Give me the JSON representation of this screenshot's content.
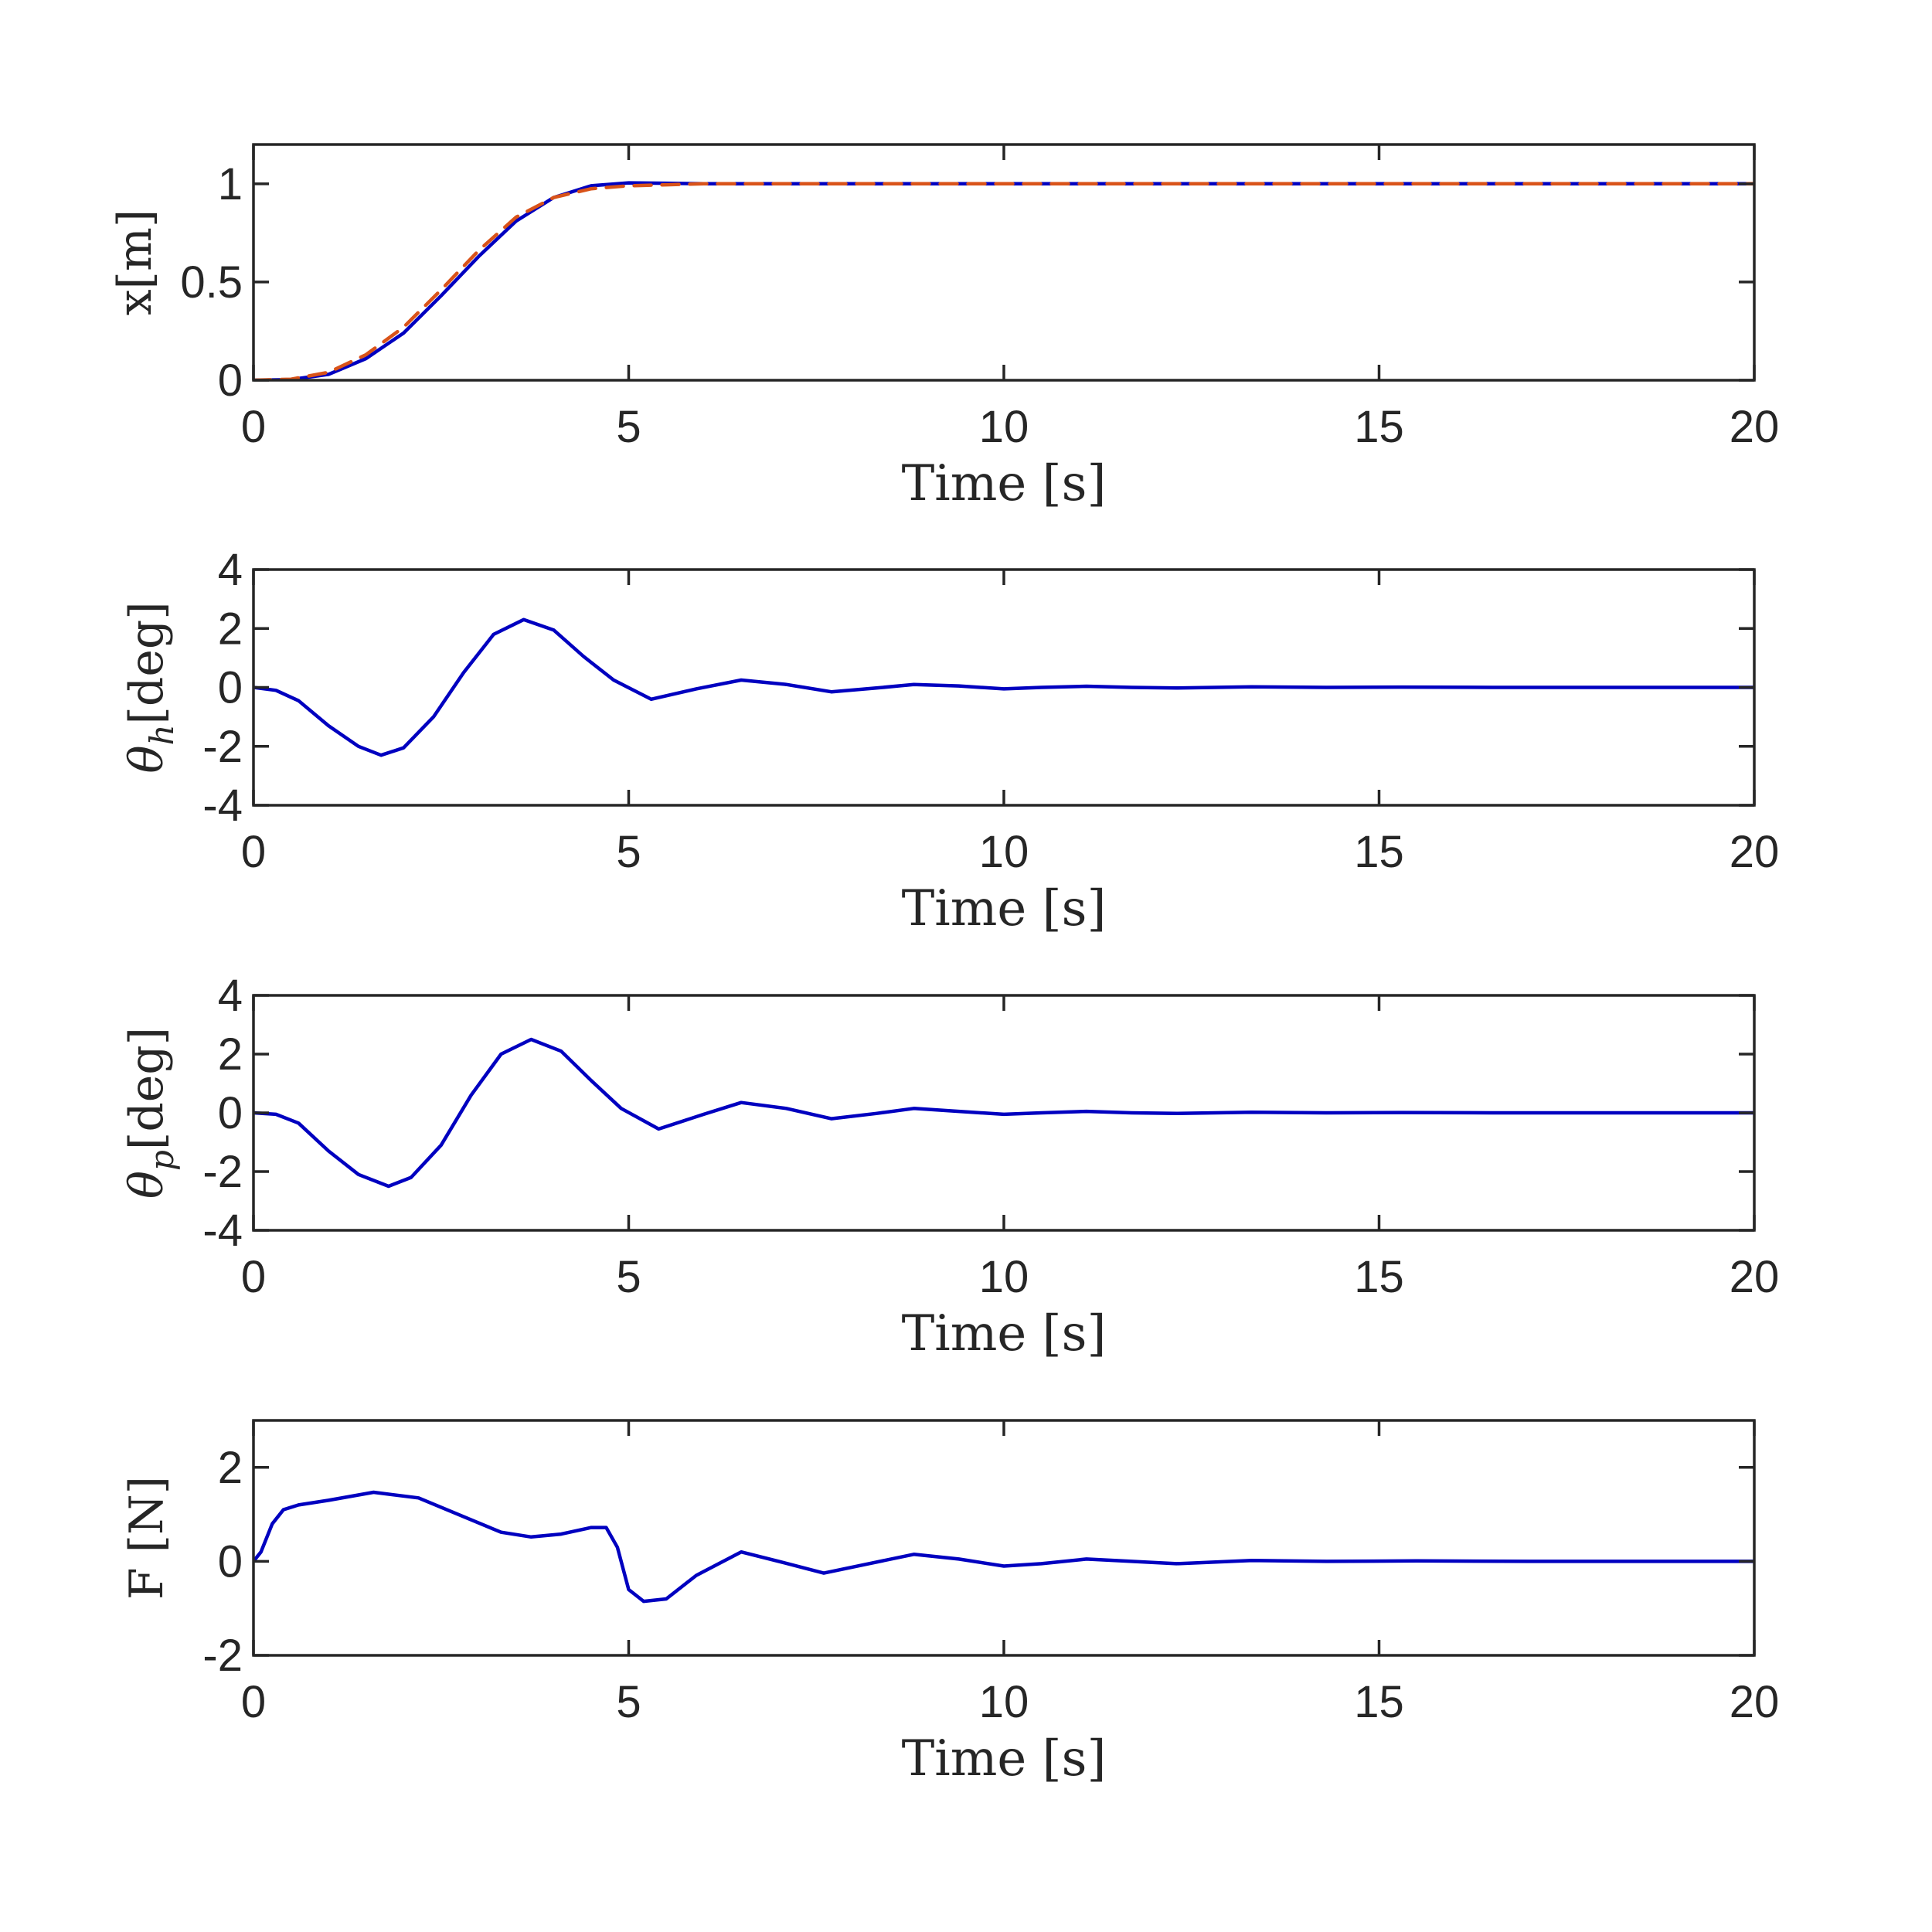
{
  "colors": {
    "axis": "#262626",
    "primary": "#0000C0",
    "reference": "#D95319"
  },
  "chart_data": [
    {
      "type": "line",
      "xlabel": "Time [s]",
      "ylabel": "x[m]",
      "xlim": [
        0,
        20
      ],
      "ylim": [
        0,
        1.2
      ],
      "xticks": [
        "0",
        "5",
        "10",
        "15",
        "20"
      ],
      "yticks": [
        "0",
        "0.5",
        "1"
      ],
      "grid": false,
      "series": [
        {
          "style": "solid",
          "color": "#0000C0",
          "x": [
            0,
            0.5,
            1,
            1.5,
            2,
            2.5,
            3,
            3.5,
            4,
            4.5,
            5,
            5.5,
            6,
            8,
            10,
            12,
            14,
            16,
            18,
            20
          ],
          "y": [
            0,
            0.003,
            0.03,
            0.11,
            0.24,
            0.43,
            0.63,
            0.81,
            0.93,
            0.99,
            1.005,
            1.003,
            1.0,
            1.0,
            1.0,
            1.0,
            1.0,
            1.0,
            1.0,
            1.0
          ]
        },
        {
          "style": "dashed",
          "color": "#D95319",
          "x": [
            0,
            0.5,
            1,
            1.5,
            2,
            2.5,
            3,
            3.5,
            4,
            4.5,
            5,
            5.5,
            6,
            8,
            10,
            12,
            14,
            16,
            18,
            20
          ],
          "y": [
            0,
            0.005,
            0.04,
            0.13,
            0.27,
            0.46,
            0.66,
            0.83,
            0.93,
            0.975,
            0.99,
            0.995,
            1.0,
            1.0,
            1.0,
            1.0,
            1.0,
            1.0,
            1.0,
            1.0
          ]
        }
      ]
    },
    {
      "type": "line",
      "xlabel": "Time [s]",
      "ylabel": "θh[deg]",
      "ylabel_parts": [
        "θ",
        "h",
        "[deg]"
      ],
      "xlim": [
        0,
        20
      ],
      "ylim": [
        -4,
        4
      ],
      "xticks": [
        "0",
        "5",
        "10",
        "15",
        "20"
      ],
      "yticks": [
        "-4",
        "-2",
        "0",
        "2",
        "4"
      ],
      "grid": false,
      "series": [
        {
          "style": "solid",
          "color": "#0000C0",
          "x": [
            0,
            0.3,
            0.6,
            1.0,
            1.4,
            1.7,
            2.0,
            2.4,
            2.8,
            3.2,
            3.6,
            4.0,
            4.4,
            4.8,
            5.3,
            5.9,
            6.5,
            7.1,
            7.7,
            8.3,
            8.8,
            9.4,
            10.0,
            10.5,
            11.1,
            11.7,
            12.3,
            13.3,
            14.3,
            15.3,
            16.5,
            18.0,
            20.0
          ],
          "y": [
            0,
            -0.1,
            -0.45,
            -1.3,
            -2.0,
            -2.3,
            -2.05,
            -1.0,
            0.5,
            1.8,
            2.3,
            1.95,
            1.05,
            0.25,
            -0.4,
            -0.05,
            0.25,
            0.1,
            -0.15,
            -0.02,
            0.1,
            0.05,
            -0.05,
            0.0,
            0.04,
            0.0,
            -0.02,
            0.02,
            0.0,
            0.01,
            0.0,
            0.0,
            0.0
          ]
        }
      ]
    },
    {
      "type": "line",
      "xlabel": "Time [s]",
      "ylabel": "θp[deg]",
      "ylabel_parts": [
        "θ",
        "p",
        "[deg]"
      ],
      "xlim": [
        0,
        20
      ],
      "ylim": [
        -4,
        4
      ],
      "xticks": [
        "0",
        "5",
        "10",
        "15",
        "20"
      ],
      "yticks": [
        "-4",
        "-2",
        "0",
        "2",
        "4"
      ],
      "grid": false,
      "series": [
        {
          "style": "solid",
          "color": "#0000C0",
          "x": [
            0,
            0.3,
            0.6,
            1.0,
            1.4,
            1.8,
            2.1,
            2.5,
            2.9,
            3.3,
            3.7,
            4.1,
            4.5,
            4.9,
            5.4,
            6.0,
            6.5,
            7.1,
            7.7,
            8.3,
            8.8,
            9.4,
            10.0,
            10.5,
            11.1,
            11.7,
            12.3,
            13.3,
            14.3,
            15.3,
            16.5,
            18.0,
            20.0
          ],
          "y": [
            0,
            -0.05,
            -0.35,
            -1.3,
            -2.1,
            -2.5,
            -2.2,
            -1.1,
            0.6,
            2.0,
            2.5,
            2.1,
            1.1,
            0.15,
            -0.55,
            -0.05,
            0.35,
            0.15,
            -0.2,
            -0.02,
            0.15,
            0.05,
            -0.05,
            0.0,
            0.05,
            0.0,
            -0.02,
            0.02,
            0.0,
            0.01,
            0.0,
            0.0,
            0.0
          ]
        }
      ]
    },
    {
      "type": "line",
      "xlabel": "Time [s]",
      "ylabel": "F [N]",
      "xlim": [
        0,
        20
      ],
      "ylim": [
        -2,
        3
      ],
      "xticks": [
        "0",
        "5",
        "10",
        "15",
        "20"
      ],
      "yticks": [
        "-2",
        "0",
        "2"
      ],
      "grid": false,
      "series": [
        {
          "style": "solid",
          "color": "#0000C0",
          "x": [
            0,
            0.1,
            0.25,
            0.4,
            0.6,
            1.0,
            1.6,
            2.2,
            2.8,
            3.3,
            3.7,
            4.1,
            4.5,
            4.7,
            4.85,
            5.0,
            5.2,
            5.5,
            5.9,
            6.5,
            7.0,
            7.6,
            8.2,
            8.8,
            9.4,
            10.0,
            10.5,
            11.1,
            11.7,
            12.3,
            13.3,
            14.3,
            15.5,
            17.0,
            20.0
          ],
          "y": [
            0,
            0.2,
            0.8,
            1.1,
            1.2,
            1.3,
            1.47,
            1.35,
            0.95,
            0.62,
            0.52,
            0.58,
            0.72,
            0.72,
            0.3,
            -0.6,
            -0.85,
            -0.8,
            -0.3,
            0.2,
            0.0,
            -0.25,
            -0.05,
            0.15,
            0.05,
            -0.1,
            -0.05,
            0.05,
            0.0,
            -0.05,
            0.02,
            0.0,
            0.01,
            0.0,
            0.0
          ]
        }
      ]
    }
  ]
}
